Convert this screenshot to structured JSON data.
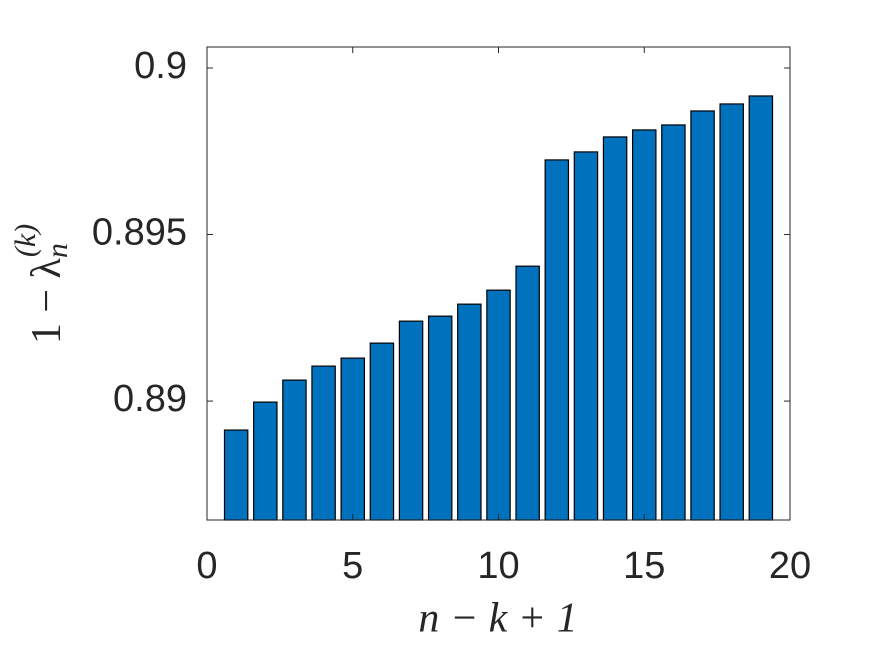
{
  "chart_data": {
    "type": "bar",
    "xlabel": "n − k + 1",
    "ylabel": {
      "main": "1 − λ",
      "sub": "n",
      "sup": "(k)"
    },
    "x": [
      1,
      2,
      3,
      4,
      5,
      6,
      7,
      8,
      9,
      10,
      11,
      12,
      13,
      14,
      15,
      16,
      17,
      18,
      19
    ],
    "values": [
      0.88913,
      0.88997,
      0.89063,
      0.89105,
      0.89129,
      0.89174,
      0.8924,
      0.89255,
      0.89291,
      0.89333,
      0.89405,
      0.89724,
      0.89748,
      0.89793,
      0.89814,
      0.89829,
      0.89871,
      0.89892,
      0.89916
    ],
    "color": "#0072bd",
    "xlim": [
      0,
      20
    ],
    "xticks": [
      0,
      5,
      10,
      15,
      20
    ],
    "ylim": [
      0.88643,
      0.90063
    ],
    "yticks": [
      0.89,
      0.895,
      0.9
    ]
  }
}
